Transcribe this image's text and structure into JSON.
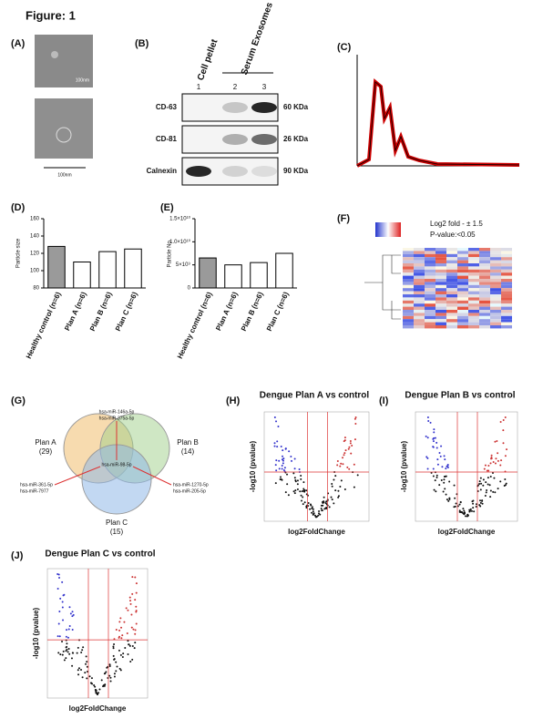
{
  "figure_title": "Figure: 1",
  "panels": {
    "A": {
      "label": "(A)",
      "scale_labels": [
        "100nm",
        "100nm"
      ]
    },
    "B": {
      "label": "(B)",
      "sample_labels": [
        "Cell pellet",
        "Serum Exosomes"
      ],
      "lanes": [
        "1",
        "2",
        "3"
      ],
      "rows": [
        {
          "protein": "CD-63",
          "size": "60 KDa"
        },
        {
          "protein": "CD-81",
          "size": "26 KDa"
        },
        {
          "protein": "Calnexin",
          "size": "90 KDa"
        }
      ]
    },
    "C": {
      "label": "(C)"
    },
    "D": {
      "label": "(D)"
    },
    "E": {
      "label": "(E)"
    },
    "F": {
      "label": "(F)",
      "notes": [
        "Log2 fold - ± 1.5",
        "P-value:<0.05"
      ]
    },
    "G": {
      "label": "(G)",
      "sets": [
        {
          "name": "Plan A",
          "count": "(29)"
        },
        {
          "name": "Plan B",
          "count": "(14)"
        },
        {
          "name": "Plan C",
          "count": "(15)"
        }
      ],
      "center": "hsa-miR-98-5p",
      "top": [
        "hsa-miR-146a-5p",
        "hsa-miR-375a-5p"
      ],
      "left": [
        "hsa-miR-361-5p",
        "hsa-miR-7977"
      ],
      "right": [
        "hsa-miR-1270-5p",
        "hsa-miR-205-5p"
      ]
    },
    "H": {
      "label": "(H)",
      "title": "Dengue Plan A vs control",
      "xlabel": "log2FoldChange",
      "ylabel": "-log10 (pvalue)"
    },
    "I": {
      "label": "(I)",
      "title": "Dengue Plan B vs control",
      "xlabel": "log2FoldChange",
      "ylabel": "-log10 (pvalue)"
    },
    "J": {
      "label": "(J)",
      "title": "Dengue Plan C vs control",
      "xlabel": "log2FoldChange",
      "ylabel": "-log10 (pvalue)"
    }
  },
  "chart_data": [
    {
      "type": "bar",
      "ylabel": "Particle size",
      "categories": [
        "Healthy control (n=6)",
        "Plan A (n=6)",
        "Plan B (n=6)",
        "Plan C (n=6)"
      ],
      "values": [
        128,
        110,
        122,
        125
      ],
      "colors": [
        "#9a9a9a",
        "#ffffff",
        "#ffffff",
        "#ffffff"
      ],
      "ylim": [
        80,
        160
      ],
      "yticks": [
        80,
        100,
        120,
        140,
        160
      ]
    },
    {
      "type": "bar",
      "ylabel": "Particle No.",
      "categories": [
        "Healthy control (n=6)",
        "Plan A (n=6)",
        "Plan B (n=6)",
        "Plan C (n=6)"
      ],
      "values": [
        6500000000,
        5000000000,
        5500000000,
        7500000000
      ],
      "colors": [
        "#9a9a9a",
        "#ffffff",
        "#ffffff",
        "#ffffff"
      ],
      "ylim": [
        0,
        15000000000
      ],
      "yticks": [
        0,
        {
          "value": 5000000000,
          "label": "5×10⁹"
        },
        {
          "value": 10000000000,
          "label": "1.0×10¹⁰"
        },
        {
          "value": 15000000000,
          "label": "1.5×10¹⁰"
        }
      ]
    }
  ]
}
